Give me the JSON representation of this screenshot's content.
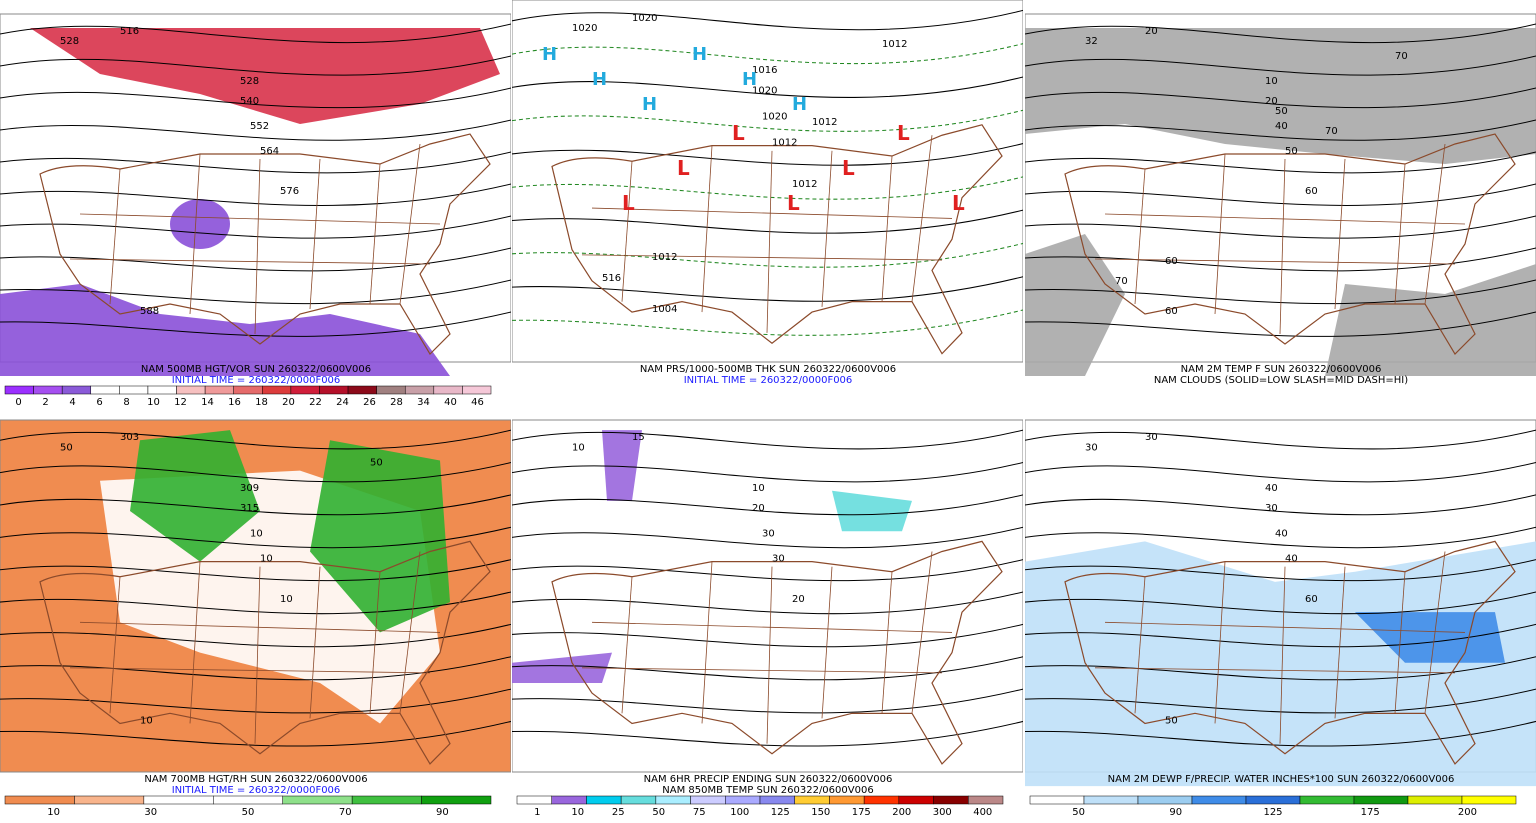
{
  "panels": [
    {
      "lines": [
        "NAM 500MB HGT/VOR SUN 260322/0600V006",
        "INITIAL TIME = 260322/0000F006"
      ],
      "line_colors": [
        "#000000",
        "#1a1aff"
      ],
      "background": "#ffffff",
      "colorbar": {
        "colors": [
          "#9b30ff",
          "#a54ff0",
          "#8a5ad8",
          "#ffffff",
          "#ffffff",
          "#ffffff",
          "#f6c0c0",
          "#ef9a9a",
          "#e56b6b",
          "#dc3c3c",
          "#d01e3a",
          "#b4102a",
          "#8c0a1a",
          "#a08080",
          "#c8a0a8",
          "#e8b8c8",
          "#f5c8d8"
        ],
        "labels": [
          0,
          2,
          4,
          6,
          8,
          10,
          12,
          14,
          16,
          18,
          20,
          22,
          24,
          26,
          28,
          34,
          40,
          46
        ]
      },
      "contour_labels": [
        "528",
        "516",
        "528",
        "540",
        "552",
        "564",
        "576",
        "588"
      ]
    },
    {
      "lines": [
        "NAM PRS/1000-500MB THK SUN 260322/0600V006",
        "INITIAL TIME = 260322/0000F006"
      ],
      "line_colors": [
        "#000000",
        "#1a1aff"
      ],
      "background": "#ffffff",
      "contour_labels": [
        "1020",
        "1020",
        "1016",
        "1020",
        "1020",
        "1012",
        "1012",
        "1004",
        "1012",
        "1012",
        "1012",
        "516"
      ],
      "highs": [
        "H",
        "H",
        "H",
        "H",
        "H",
        "H"
      ],
      "lows": [
        "L",
        "L",
        "L",
        "L",
        "L",
        "L",
        "L"
      ]
    },
    {
      "lines": [
        "NAM 2M TEMP F SUN 260322/0600V006",
        "NAM CLOUDS (SOLID=LOW SLASH=MID DASH=HI)"
      ],
      "line_colors": [
        "#000000",
        "#000000"
      ],
      "background": "#ffffff",
      "contour_labels": [
        "32",
        "20",
        "10",
        "20",
        "40",
        "50",
        "60",
        "60",
        "70",
        "70",
        "60",
        "70",
        "50"
      ]
    },
    {
      "lines": [
        "NAM 700MB HGT/RH SUN 260322/0600V006",
        "INITIAL TIME = 260322/0000F006"
      ],
      "line_colors": [
        "#000000",
        "#1a1aff"
      ],
      "background": "#f08c50",
      "colorbar": {
        "colors": [
          "#f08c50",
          "#f8b48c",
          "#ffffff",
          "#ffffff",
          "#8ee08a",
          "#40c040",
          "#10a010"
        ],
        "labels": [
          10,
          30,
          50,
          70,
          90
        ]
      },
      "contour_labels": [
        "50",
        "303",
        "309",
        "315",
        "10",
        "10",
        "10",
        "10",
        "50"
      ]
    },
    {
      "lines": [
        "NAM 6HR PRECIP ENDING SUN 260322/0600V006",
        "NAM 850MB TEMP SUN 260322/0600V006"
      ],
      "line_colors": [
        "#000000",
        "#000000"
      ],
      "background": "#ffffff",
      "colorbar": {
        "colors": [
          "#ffffff",
          "#9966dd",
          "#00ccee",
          "#66dddd",
          "#aaeeff",
          "#ccccff",
          "#aaaaff",
          "#8888ee",
          "#ffcc33",
          "#ff9933",
          "#ff3300",
          "#cc0000",
          "#880000",
          "#bb8888"
        ],
        "labels": [
          1,
          10,
          25,
          50,
          75,
          100,
          125,
          150,
          175,
          200,
          300,
          400
        ]
      },
      "contour_labels": [
        "10",
        "15",
        "10",
        "20",
        "30",
        "30",
        "20"
      ]
    },
    {
      "lines": [
        "NAM 2M DEWP F/PRECIP. WATER INCHES*100 SUN 260322/0600V006"
      ],
      "line_colors": [
        "#000000"
      ],
      "background": "#ffffff",
      "colorbar": {
        "colors": [
          "#ffffff",
          "#bfe0f8",
          "#9ccdf0",
          "#3f8ce8",
          "#2a6fd8",
          "#33bb33",
          "#119911",
          "#ddee00",
          "#ffff00"
        ],
        "labels": [
          50,
          90,
          125,
          175,
          200
        ]
      },
      "contour_labels": [
        "30",
        "30",
        "40",
        "30",
        "40",
        "40",
        "60",
        "50"
      ]
    }
  ]
}
